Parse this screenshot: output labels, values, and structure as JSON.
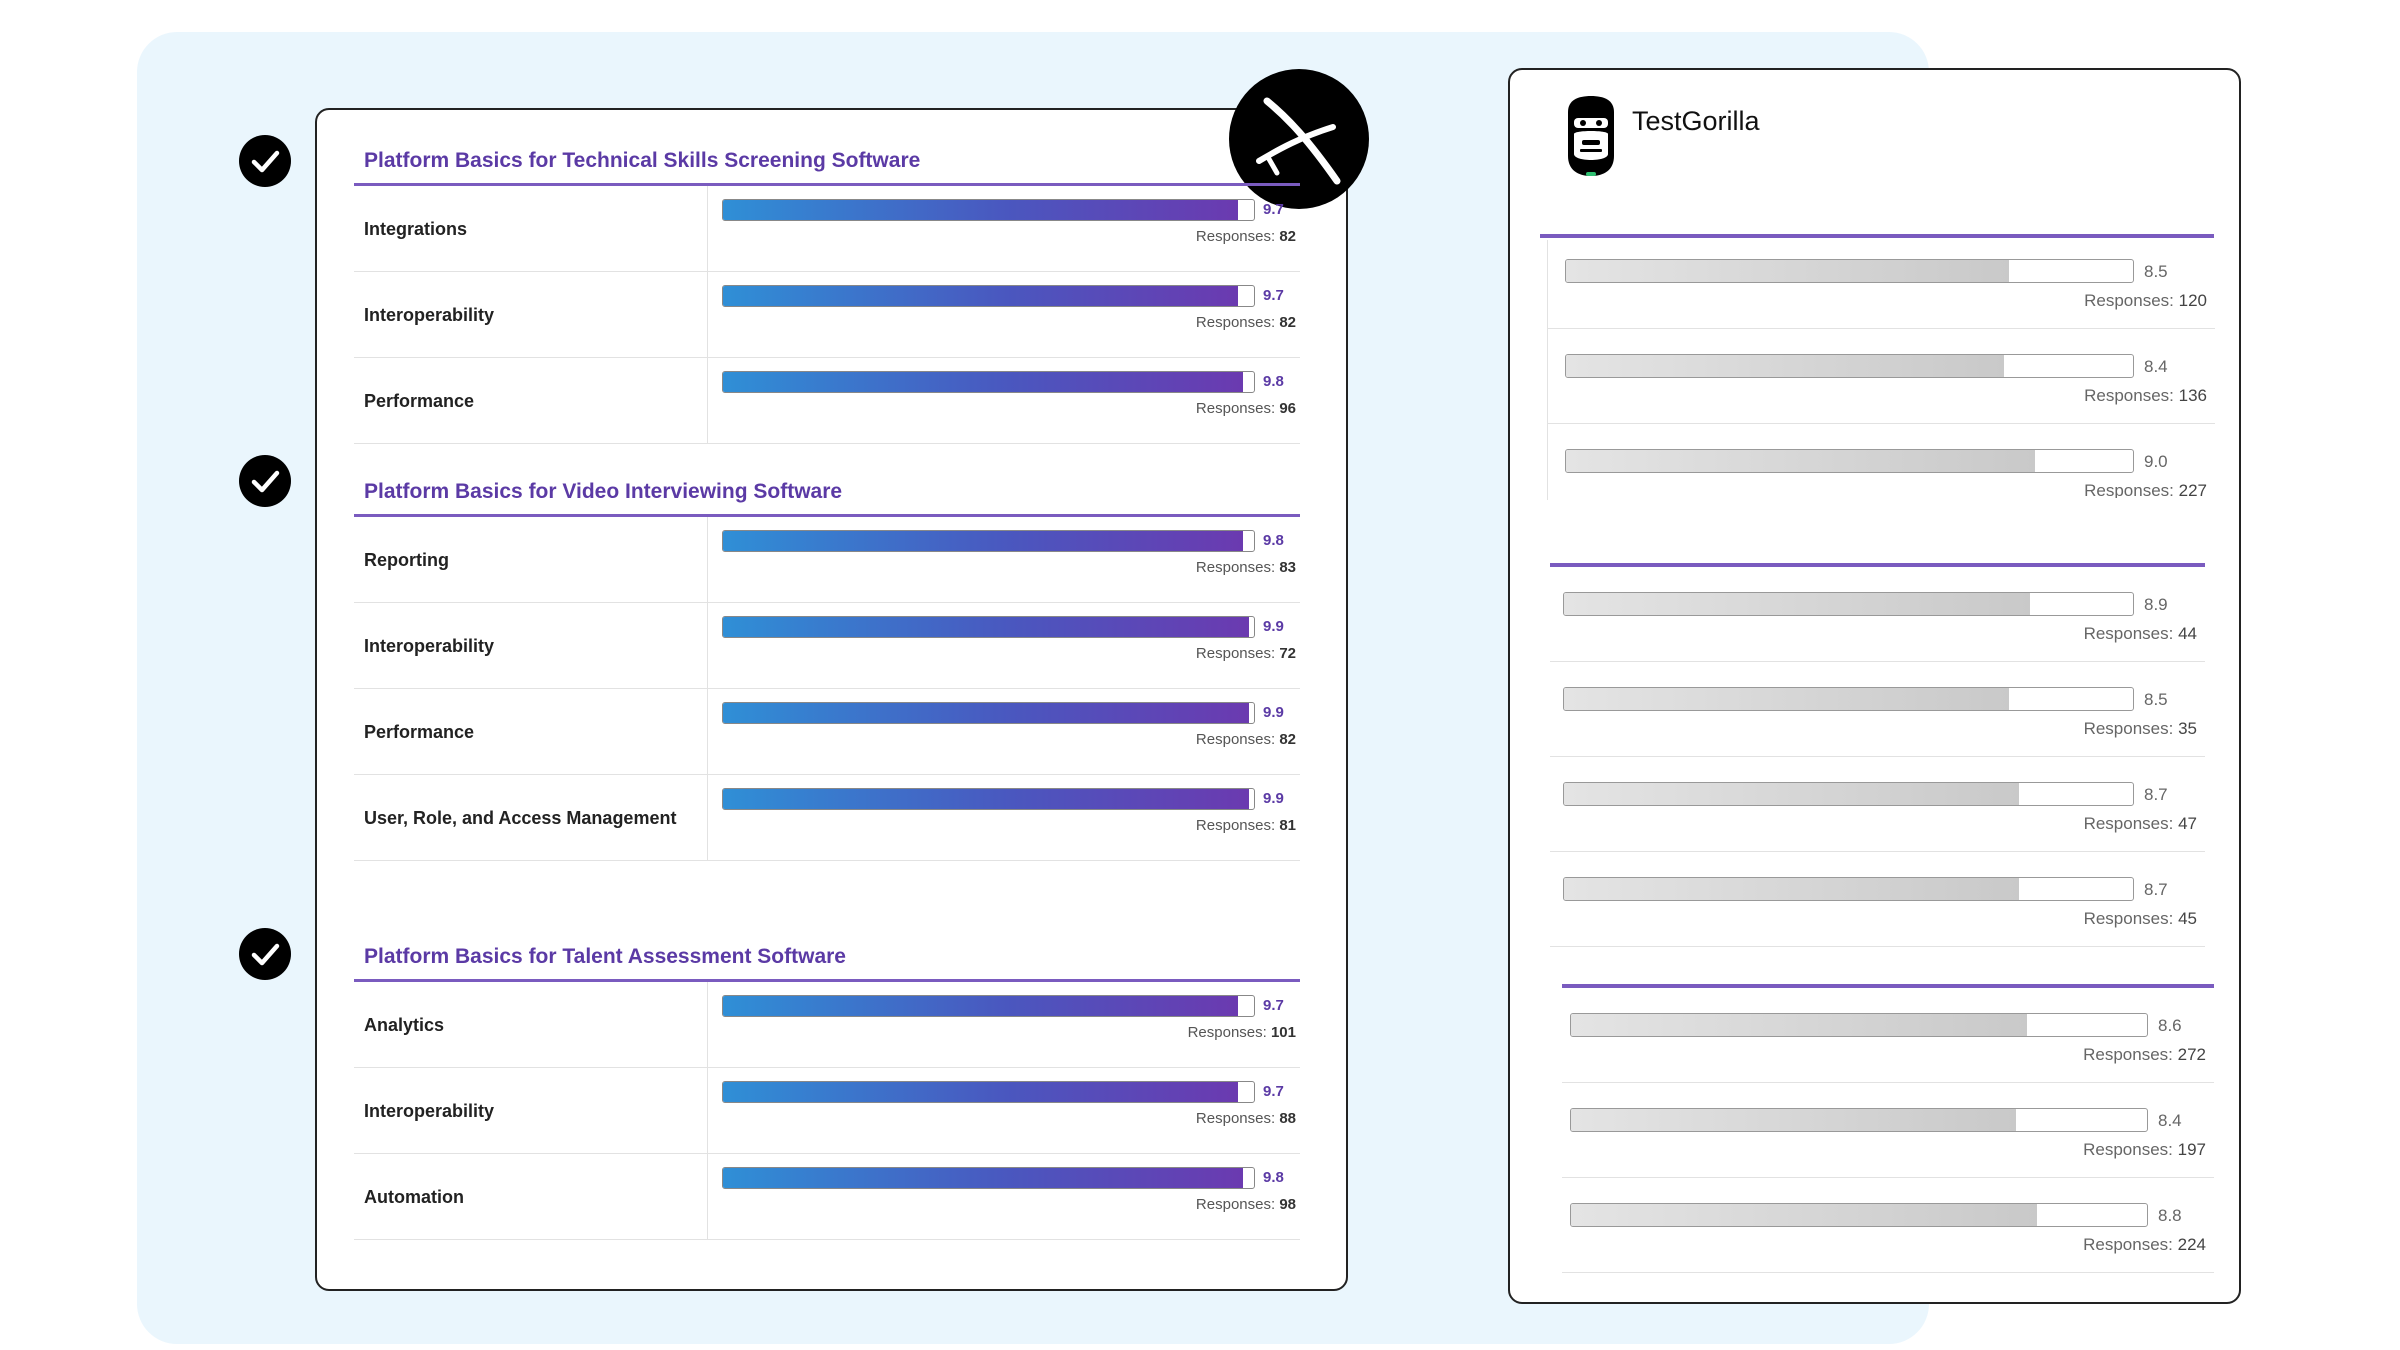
{
  "chart_data": [
    {
      "type": "bar",
      "title": "Platform Basics for Technical Skills Screening Software",
      "categories": [
        "Integrations",
        "Interoperability",
        "Performance"
      ],
      "values": [
        9.7,
        9.7,
        9.8
      ],
      "responses": [
        82,
        82,
        96
      ],
      "xlim": [
        0,
        10
      ]
    },
    {
      "type": "bar",
      "title": "Platform Basics for Video Interviewing Software",
      "categories": [
        "Reporting",
        "Interoperability",
        "Performance",
        "User, Role, and Access Management"
      ],
      "values": [
        9.8,
        9.9,
        9.9,
        9.9
      ],
      "responses": [
        83,
        72,
        82,
        81
      ],
      "xlim": [
        0,
        10
      ]
    },
    {
      "type": "bar",
      "title": "Platform Basics for Talent Assessment Software",
      "categories": [
        "Analytics",
        "Interoperability",
        "Automation"
      ],
      "values": [
        9.7,
        9.7,
        9.8
      ],
      "responses": [
        101,
        88,
        98
      ],
      "xlim": [
        0,
        10
      ]
    },
    {
      "type": "bar",
      "brand": "TestGorilla",
      "values": [
        8.5,
        8.4,
        9.0
      ],
      "responses": [
        120,
        136,
        227
      ],
      "xlim": [
        0,
        10
      ]
    },
    {
      "type": "bar",
      "brand": "TestGorilla",
      "values": [
        8.9,
        8.5,
        8.7,
        8.7
      ],
      "responses": [
        44,
        35,
        47,
        45
      ],
      "xlim": [
        0,
        10
      ]
    },
    {
      "type": "bar",
      "brand": "TestGorilla",
      "values": [
        8.6,
        8.4,
        8.8
      ],
      "responses": [
        272,
        197,
        224
      ],
      "xlim": [
        0,
        10
      ]
    }
  ],
  "labels": {
    "responses_prefix": "Responses: "
  },
  "brand": {
    "name": "TestGorilla"
  },
  "icons": {
    "check": "check-circle-icon",
    "left_logo": "glider-logo-icon",
    "right_logo": "gorilla-logo-icon"
  },
  "colors": {
    "title": "#5b3aa5",
    "accent_line": "#7a5bbf",
    "background_panel": "#eaf6fd"
  }
}
